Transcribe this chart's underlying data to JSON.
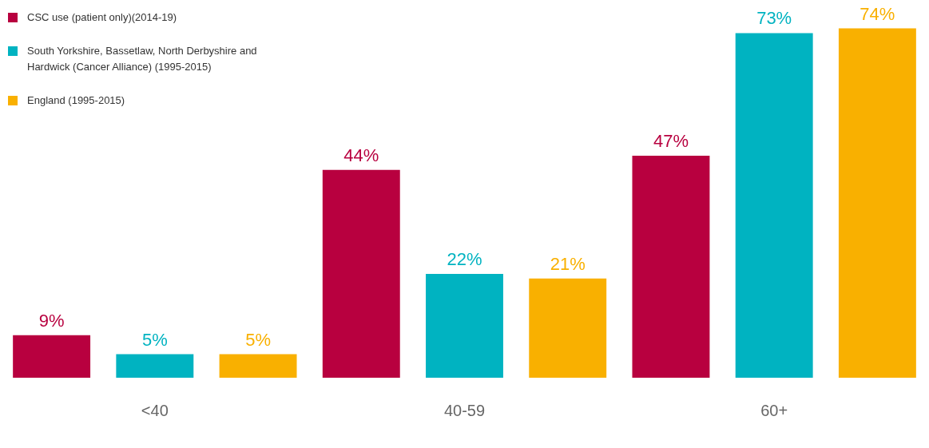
{
  "chart_data": {
    "type": "bar",
    "categories": [
      "<40",
      "40-59",
      "60+"
    ],
    "series": [
      {
        "name": "CSC use (patient only)(2014-19)",
        "color": "#b8003f",
        "values": [
          9,
          44,
          47
        ],
        "value_labels": [
          "9%",
          "44%",
          "47%"
        ]
      },
      {
        "name": "South Yorkshire, Bassetlaw, North Derbyshire and Hardwick (Cancer Alliance) (1995-2015)",
        "color": "#00b3c1",
        "values": [
          5,
          22,
          73
        ],
        "value_labels": [
          "5%",
          "22%",
          "73%"
        ]
      },
      {
        "name": "England (1995-2015)",
        "color": "#f9b000",
        "values": [
          5,
          21,
          74
        ],
        "value_labels": [
          "5%",
          "21%",
          "74%"
        ]
      }
    ],
    "legend": "top left"
  }
}
